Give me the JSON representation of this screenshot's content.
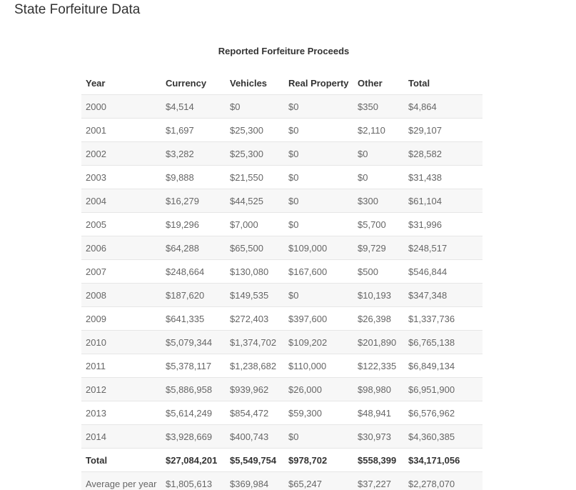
{
  "page_title": "State Forfeiture Data",
  "table": {
    "caption": "Reported Forfeiture Proceeds",
    "headers": [
      "Year",
      "Currency",
      "Vehicles",
      "Real Property",
      "Other",
      "Total"
    ],
    "rows": [
      [
        "2000",
        "$4,514",
        "$0",
        "$0",
        "$350",
        "$4,864"
      ],
      [
        "2001",
        "$1,697",
        "$25,300",
        "$0",
        "$2,110",
        "$29,107"
      ],
      [
        "2002",
        "$3,282",
        "$25,300",
        "$0",
        "$0",
        "$28,582"
      ],
      [
        "2003",
        "$9,888",
        "$21,550",
        "$0",
        "$0",
        "$31,438"
      ],
      [
        "2004",
        "$16,279",
        "$44,525",
        "$0",
        "$300",
        "$61,104"
      ],
      [
        "2005",
        "$19,296",
        "$7,000",
        "$0",
        "$5,700",
        "$31,996"
      ],
      [
        "2006",
        "$64,288",
        "$65,500",
        "$109,000",
        "$9,729",
        "$248,517"
      ],
      [
        "2007",
        "$248,664",
        "$130,080",
        "$167,600",
        "$500",
        "$546,844"
      ],
      [
        "2008",
        "$187,620",
        "$149,535",
        "$0",
        "$10,193",
        "$347,348"
      ],
      [
        "2009",
        "$641,335",
        "$272,403",
        "$397,600",
        "$26,398",
        "$1,337,736"
      ],
      [
        "2010",
        "$5,079,344",
        "$1,374,702",
        "$109,202",
        "$201,890",
        "$6,765,138"
      ],
      [
        "2011",
        "$5,378,117",
        "$1,238,682",
        "$110,000",
        "$122,335",
        "$6,849,134"
      ],
      [
        "2012",
        "$5,886,958",
        "$939,962",
        "$26,000",
        "$98,980",
        "$6,951,900"
      ],
      [
        "2013",
        "$5,614,249",
        "$854,472",
        "$59,300",
        "$48,941",
        "$6,576,962"
      ],
      [
        "2014",
        "$3,928,669",
        "$400,743",
        "$0",
        "$30,973",
        "$4,360,385"
      ]
    ],
    "total_row": [
      "Total",
      "$27,084,201",
      "$5,549,754",
      "$978,702",
      "$558,399",
      "$34,171,056"
    ],
    "average_row": [
      "Average per year",
      "$1,805,613",
      "$369,984",
      "$65,247",
      "$37,227",
      "$2,278,070"
    ]
  }
}
